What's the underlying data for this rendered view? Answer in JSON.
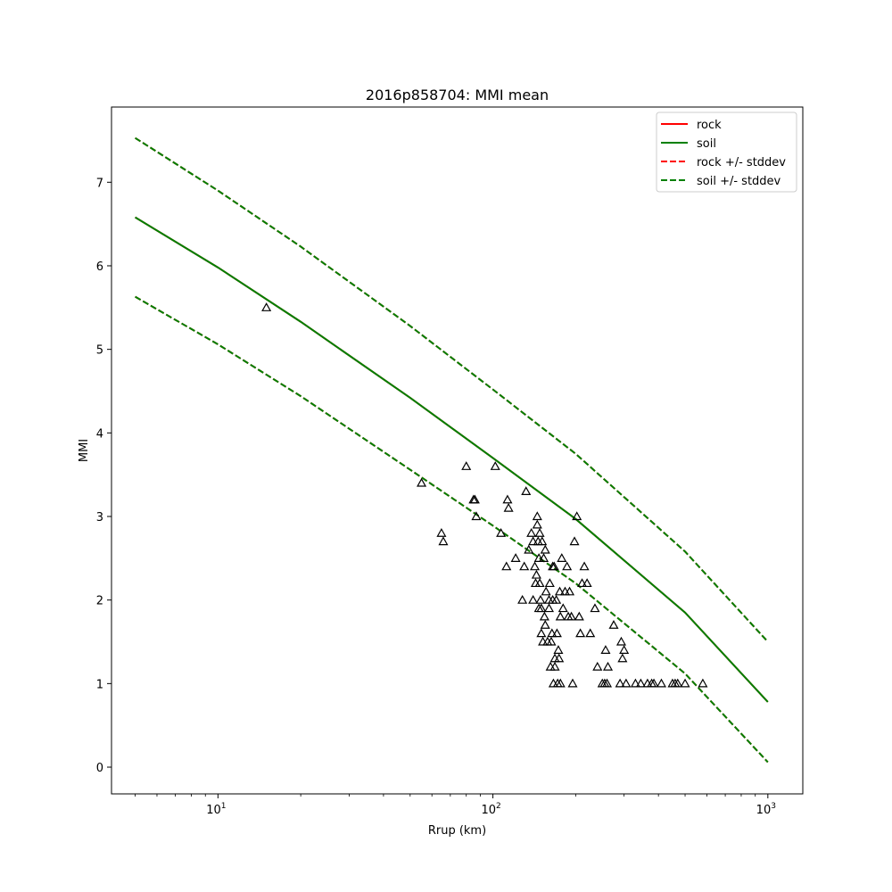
{
  "chart_data": {
    "type": "scatter",
    "title": "2016p858704: MMI mean",
    "xlabel": "Rrup (km)",
    "ylabel": "MMI",
    "xscale": "log",
    "xlim": [
      4.1,
      1340
    ],
    "ylim": [
      -0.32,
      7.9
    ],
    "x_ticks": [
      {
        "value": 10,
        "base": "10",
        "exp": "1"
      },
      {
        "value": 100,
        "base": "10",
        "exp": "2"
      },
      {
        "value": 1000,
        "base": "10",
        "exp": "3"
      }
    ],
    "y_ticks": [
      0,
      1,
      2,
      3,
      4,
      5,
      6,
      7
    ],
    "grid": false,
    "legend_position": "upper right",
    "legend": [
      {
        "label": "rock",
        "color": "#ff0000",
        "style": "solid"
      },
      {
        "label": "soil",
        "color": "#008000",
        "style": "solid"
      },
      {
        "label": "rock +/- stddev",
        "color": "#ff0000",
        "style": "dashed"
      },
      {
        "label": "soil +/- stddev",
        "color": "#008000",
        "style": "dashed"
      }
    ],
    "lines": [
      {
        "name": "rock",
        "style": "solid",
        "color": "#ff0000",
        "x": [
          5,
          10,
          20,
          50,
          100,
          200,
          500,
          1000
        ],
        "y": [
          6.58,
          5.98,
          5.33,
          4.42,
          3.7,
          2.97,
          1.85,
          0.78
        ]
      },
      {
        "name": "soil",
        "style": "solid",
        "color": "#008000",
        "x": [
          5,
          10,
          20,
          50,
          100,
          200,
          500,
          1000
        ],
        "y": [
          6.58,
          5.98,
          5.33,
          4.42,
          3.7,
          2.97,
          1.85,
          0.78
        ]
      },
      {
        "name": "rock +/- stddev",
        "style": "dashed",
        "color": "#ff0000",
        "x": [
          5,
          10,
          20,
          50,
          100,
          200,
          500,
          1000
        ],
        "y": [
          7.53,
          6.9,
          6.23,
          5.28,
          4.52,
          3.75,
          2.58,
          1.5
        ]
      },
      {
        "name": "rock +/- stddev",
        "style": "dashed",
        "color": "#ff0000",
        "x": [
          5,
          10,
          20,
          50,
          100,
          200,
          500,
          1000
        ],
        "y": [
          5.63,
          5.06,
          4.44,
          3.56,
          2.89,
          2.2,
          1.12,
          0.06
        ]
      },
      {
        "name": "soil +/- stddev",
        "style": "dashed",
        "color": "#008000",
        "x": [
          5,
          10,
          20,
          50,
          100,
          200,
          500,
          1000
        ],
        "y": [
          7.53,
          6.9,
          6.23,
          5.28,
          4.52,
          3.75,
          2.58,
          1.5
        ]
      },
      {
        "name": "soil +/- stddev",
        "style": "dashed",
        "color": "#008000",
        "x": [
          5,
          10,
          20,
          50,
          100,
          200,
          500,
          1000
        ],
        "y": [
          5.63,
          5.06,
          4.44,
          3.56,
          2.89,
          2.2,
          1.12,
          0.06
        ]
      }
    ],
    "points": {
      "marker": "triangle",
      "color": "#000000",
      "x": [
        15,
        55,
        65,
        66,
        80,
        85,
        86,
        87,
        102,
        107,
        112,
        113,
        114,
        121,
        128,
        130,
        132,
        135,
        138,
        140,
        140,
        142,
        143,
        144,
        145,
        145,
        146,
        147,
        147,
        148,
        148,
        149,
        150,
        150,
        151,
        152,
        153,
        154,
        155,
        155,
        156,
        158,
        160,
        160,
        161,
        162,
        163,
        164,
        165,
        165,
        166,
        167,
        168,
        168,
        170,
        171,
        172,
        173,
        174,
        175,
        176,
        176,
        178,
        180,
        183,
        186,
        188,
        190,
        193,
        195,
        198,
        202,
        206,
        208,
        211,
        215,
        220,
        226,
        235,
        240,
        250,
        255,
        257,
        260,
        262,
        275,
        290,
        293,
        296,
        300,
        305,
        330,
        345,
        365,
        378,
        385,
        410,
        450,
        460,
        470,
        500,
        580
      ],
      "y": [
        5.5,
        3.4,
        2.8,
        2.7,
        3.6,
        3.2,
        3.2,
        3.0,
        3.6,
        2.8,
        2.4,
        3.2,
        3.1,
        2.5,
        2.0,
        2.4,
        3.3,
        2.6,
        2.8,
        2.0,
        2.7,
        2.4,
        2.2,
        2.3,
        2.9,
        3.0,
        2.7,
        1.9,
        2.5,
        2.8,
        2.2,
        2.0,
        1.9,
        1.6,
        2.7,
        1.5,
        2.5,
        1.8,
        2.6,
        1.7,
        2.1,
        1.5,
        2.0,
        1.9,
        2.2,
        1.2,
        1.5,
        1.6,
        2.4,
        2.0,
        1.0,
        2.4,
        1.3,
        1.2,
        2.0,
        1.6,
        1.0,
        1.4,
        1.3,
        2.1,
        1.0,
        1.8,
        2.5,
        1.9,
        2.1,
        2.4,
        1.8,
        2.1,
        1.8,
        1.0,
        2.7,
        3.0,
        1.8,
        1.6,
        2.2,
        2.4,
        2.2,
        1.6,
        1.9,
        1.2,
        1.0,
        1.0,
        1.4,
        1.0,
        1.2,
        1.7,
        1.0,
        1.5,
        1.3,
        1.4,
        1.0,
        1.0,
        1.0,
        1.0,
        1.0,
        1.0,
        1.0,
        1.0,
        1.0,
        1.0,
        1.0,
        1.0
      ]
    }
  }
}
